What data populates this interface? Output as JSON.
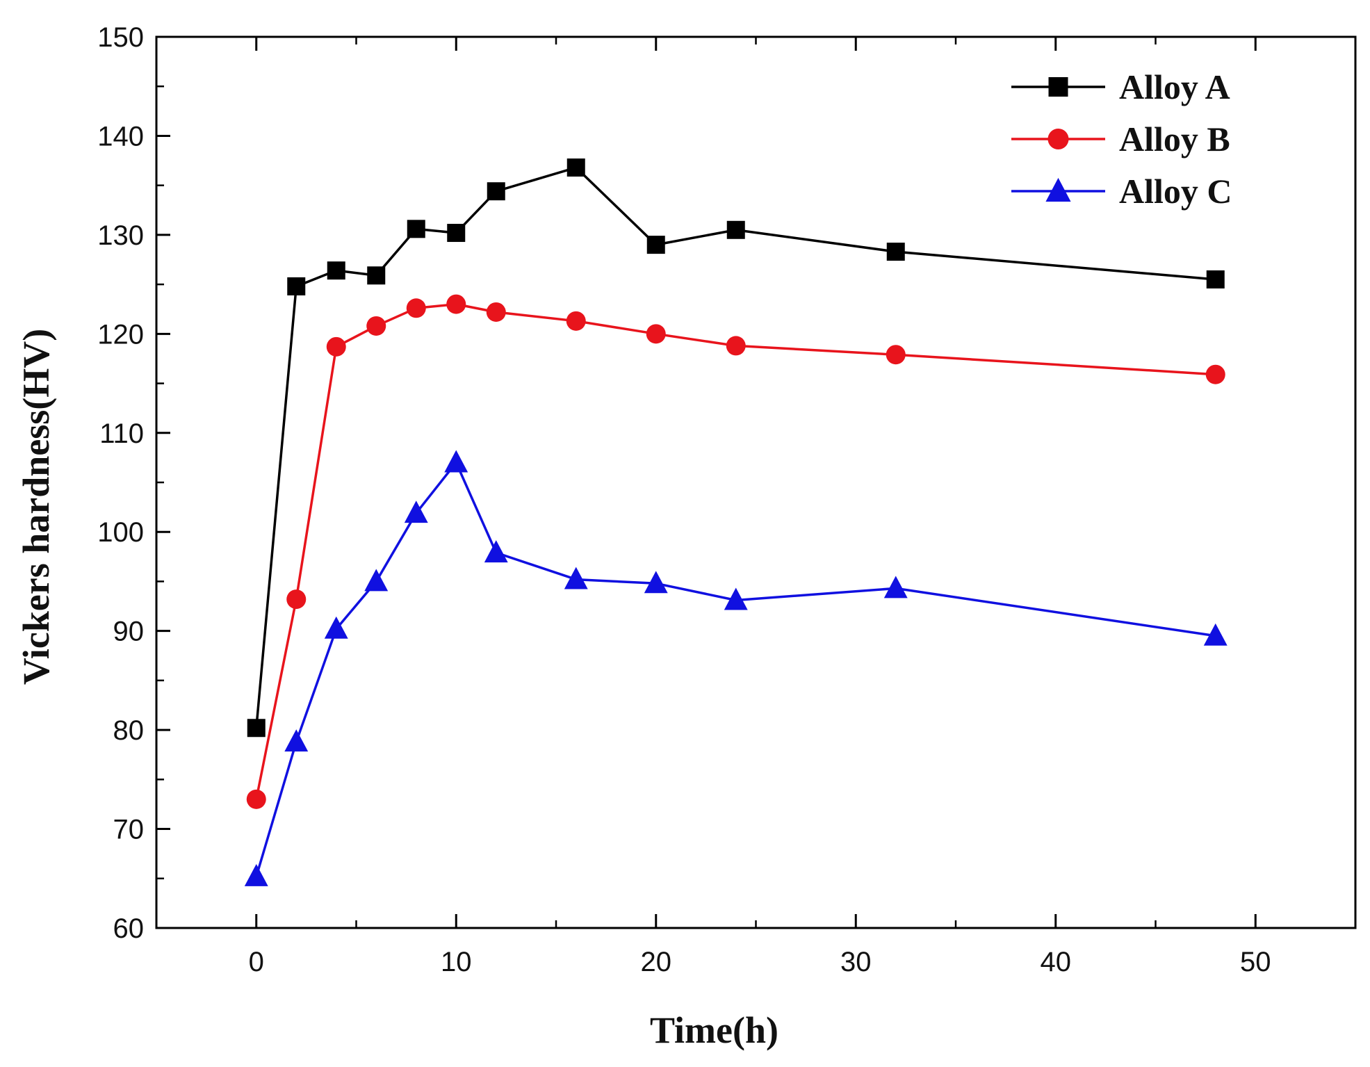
{
  "chart_data": {
    "type": "line",
    "title": "",
    "xlabel": "Time(h)",
    "ylabel": "Vickers hardness(HV)",
    "xlim": [
      -5,
      55
    ],
    "ylim": [
      60,
      150
    ],
    "x_major_ticks": [
      0,
      10,
      20,
      30,
      40,
      50
    ],
    "y_major_ticks": [
      60,
      70,
      80,
      90,
      100,
      110,
      120,
      130,
      140,
      150
    ],
    "x_minor_ticks": [
      -5,
      5,
      15,
      25,
      35,
      45,
      55
    ],
    "y_minor_ticks": [
      65,
      75,
      85,
      95,
      105,
      115,
      125,
      135,
      145
    ],
    "grid": false,
    "legend_position": "top-right",
    "x": [
      0,
      2,
      4,
      6,
      8,
      10,
      12,
      16,
      20,
      24,
      32,
      48
    ],
    "series": [
      {
        "name": "Alloy A",
        "color": "#000000",
        "marker": "square",
        "values": [
          80.2,
          124.8,
          126.4,
          125.9,
          130.6,
          130.2,
          134.4,
          136.8,
          129.0,
          130.5,
          128.3,
          125.5
        ]
      },
      {
        "name": "Alloy B",
        "color": "#e8141c",
        "marker": "circle",
        "values": [
          73.0,
          93.2,
          118.7,
          120.8,
          122.6,
          123.0,
          122.2,
          121.3,
          120.0,
          118.8,
          117.9,
          115.9
        ]
      },
      {
        "name": "Alloy C",
        "color": "#1010e0",
        "marker": "triangle",
        "values": [
          65.2,
          78.8,
          90.2,
          95.0,
          101.9,
          107.0,
          97.9,
          95.2,
          94.8,
          93.1,
          94.3,
          89.5
        ]
      }
    ]
  }
}
